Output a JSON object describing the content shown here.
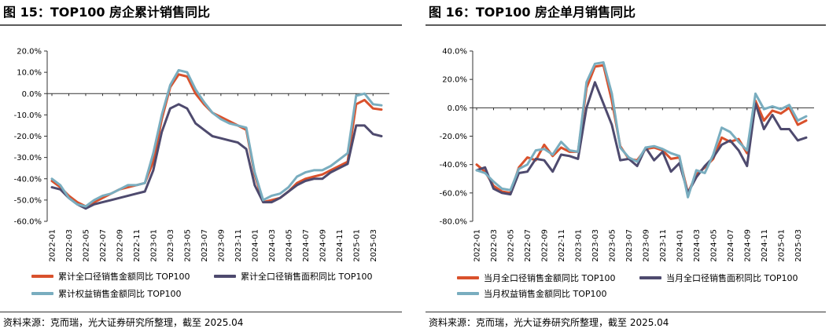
{
  "left": {
    "title": "图 15：TOP100 房企累计销售同比",
    "source": "资料来源：克而瑞，光大证券研究所整理，截至 2025.04",
    "colors": {
      "amount": "#d9512c",
      "area": "#4e4a6e",
      "equity": "#79adbf"
    },
    "chart_data": {
      "type": "line",
      "xlabel": "",
      "ylabel": "",
      "ylim": [
        -60,
        20
      ],
      "y_ticks": [
        "20.0%",
        "10.0%",
        "0.0%",
        "-10.0%",
        "-20.0%",
        "-30.0%",
        "-40.0%",
        "-50.0%",
        "-60.0%"
      ],
      "y_tick_values": [
        20,
        10,
        0,
        -10,
        -20,
        -30,
        -40,
        -50,
        -60
      ],
      "x": [
        "2022-01",
        "2022-02",
        "2022-03",
        "2022-04",
        "2022-05",
        "2022-06",
        "2022-07",
        "2022-08",
        "2022-09",
        "2022-10",
        "2022-11",
        "2022-12",
        "2023-01",
        "2023-02",
        "2023-03",
        "2023-04",
        "2023-05",
        "2023-06",
        "2023-07",
        "2023-08",
        "2023-09",
        "2023-10",
        "2023-11",
        "2023-12",
        "2024-01",
        "2024-02",
        "2024-03",
        "2024-04",
        "2024-05",
        "2024-06",
        "2024-07",
        "2024-08",
        "2024-09",
        "2024-10",
        "2024-11",
        "2024-12",
        "2025-01",
        "2025-02",
        "2025-03",
        "2025-04"
      ],
      "x_tick_labels": [
        "2022-01",
        "2022-03",
        "2022-05",
        "2022-07",
        "2022-09",
        "2022-11",
        "2023-01",
        "2023-03",
        "2023-05",
        "2023-07",
        "2023-09",
        "2023-11",
        "2024-01",
        "2024-03",
        "2024-05",
        "2024-07",
        "2024-09",
        "2024-11",
        "2025-01",
        "2025-03"
      ],
      "grid": false,
      "legend_placement": "bottom",
      "series": [
        {
          "name": "累计全口径销售金额同比 TOP100",
          "key": "amount",
          "values": [
            -41,
            -44,
            -48,
            -51,
            -53,
            -51,
            -49,
            -47,
            -45,
            -44,
            -43,
            -42,
            -32,
            -12,
            3,
            9,
            8,
            0,
            -5,
            -9,
            -11,
            -13,
            -15,
            -17,
            -38,
            -51,
            -50,
            -49,
            -46,
            -42,
            -40,
            -39,
            -38,
            -36,
            -34,
            -32,
            -5,
            -3,
            -7,
            -7.5
          ]
        },
        {
          "name": "累计全口径销售面积同比 TOP100",
          "key": "area",
          "values": [
            -44,
            -45,
            -49,
            -52,
            -54,
            -52,
            -51,
            -50,
            -49,
            -48,
            -47,
            -46,
            -36,
            -18,
            -7,
            -5,
            -7,
            -14,
            -17,
            -20,
            -21,
            -22,
            -23,
            -26,
            -43,
            -51,
            -51,
            -49,
            -46,
            -43,
            -41,
            -40,
            -40,
            -37,
            -35,
            -33,
            -15,
            -15,
            -19,
            -20
          ]
        },
        {
          "name": "累计权益销售金额同比 TOP100",
          "key": "equity",
          "values": [
            -40,
            -43,
            -49,
            -52,
            -53,
            -50,
            -48,
            -47,
            -45,
            -43,
            -43,
            -42,
            -28,
            -10,
            4,
            11,
            10,
            2,
            -4,
            -9,
            -12,
            -14,
            -15,
            -16,
            -37,
            -50,
            -48,
            -47,
            -44,
            -39,
            -37,
            -36,
            -36,
            -34,
            -31,
            -28,
            -1,
            0,
            -5,
            -5.5
          ]
        }
      ]
    }
  },
  "right": {
    "title": "图 16：TOP100 房企单月销售同比",
    "source": "资料来源：克而瑞，光大证券研究所整理，截至 2025.04",
    "colors": {
      "amount": "#d9512c",
      "area": "#4e4a6e",
      "equity": "#79adbf"
    },
    "chart_data": {
      "type": "line",
      "xlabel": "",
      "ylabel": "",
      "ylim": [
        -80,
        40
      ],
      "y_ticks": [
        "40.0%",
        "20.0%",
        "0.0%",
        "-20.0%",
        "-40.0%",
        "-60.0%",
        "-80.0%"
      ],
      "y_tick_values": [
        40,
        20,
        0,
        -20,
        -40,
        -60,
        -80
      ],
      "x": [
        "2022-01",
        "2022-02",
        "2022-03",
        "2022-04",
        "2022-05",
        "2022-06",
        "2022-07",
        "2022-08",
        "2022-09",
        "2022-10",
        "2022-11",
        "2022-12",
        "2023-01",
        "2023-02",
        "2023-03",
        "2023-04",
        "2023-05",
        "2023-06",
        "2023-07",
        "2023-08",
        "2023-09",
        "2023-10",
        "2023-11",
        "2023-12",
        "2024-01",
        "2024-02",
        "2024-03",
        "2024-04",
        "2024-05",
        "2024-06",
        "2024-07",
        "2024-08",
        "2024-09",
        "2024-10",
        "2024-11",
        "2024-12",
        "2025-01",
        "2025-02",
        "2025-03",
        "2025-04"
      ],
      "x_tick_labels": [
        "2022-01",
        "2022-03",
        "2022-05",
        "2022-07",
        "2022-09",
        "2022-11",
        "2023-01",
        "2023-03",
        "2023-05",
        "2023-07",
        "2023-09",
        "2023-11",
        "2024-01",
        "2024-03",
        "2024-05",
        "2024-07",
        "2024-09",
        "2024-11",
        "2025-01",
        "2025-03"
      ],
      "grid": false,
      "legend_placement": "bottom",
      "series": [
        {
          "name": "当月全口径销售金额同比 TOP100",
          "key": "amount",
          "values": [
            -40,
            -45,
            -55,
            -59,
            -60,
            -42,
            -35,
            -37,
            -26,
            -34,
            -28,
            -31,
            -31,
            14,
            29,
            30,
            5,
            -27,
            -36,
            -37,
            -29,
            -28,
            -30,
            -36,
            -35,
            -60,
            -47,
            -42,
            -36,
            -21,
            -24,
            -22,
            -32,
            5,
            -9,
            -2,
            -4,
            0,
            -12,
            -9
          ]
        },
        {
          "name": "当月全口径销售面积同比 TOP100",
          "key": "area",
          "values": [
            -44,
            -42,
            -57,
            -60,
            -61,
            -46,
            -45,
            -36,
            -37,
            -45,
            -33,
            -34,
            -36,
            0,
            18,
            3,
            -12,
            -37,
            -36,
            -41,
            -28,
            -37,
            -31,
            -45,
            -39,
            -60,
            -49,
            -41,
            -35,
            -26,
            -23,
            -30,
            -41,
            3,
            -15,
            -5,
            -15,
            -15,
            -23,
            -21
          ]
        },
        {
          "name": "当月权益销售金额同比 TOP100",
          "key": "equity",
          "values": [
            -44,
            -46,
            -52,
            -57,
            -58,
            -43,
            -40,
            -30,
            -29,
            -33,
            -24,
            -30,
            -31,
            18,
            31,
            32,
            10,
            -28,
            -35,
            -38,
            -28,
            -27,
            -29,
            -32,
            -34,
            -63,
            -44,
            -46,
            -33,
            -14,
            -17,
            -24,
            -30,
            10,
            -1,
            1,
            -1,
            2,
            -9,
            -6
          ]
        }
      ]
    }
  }
}
